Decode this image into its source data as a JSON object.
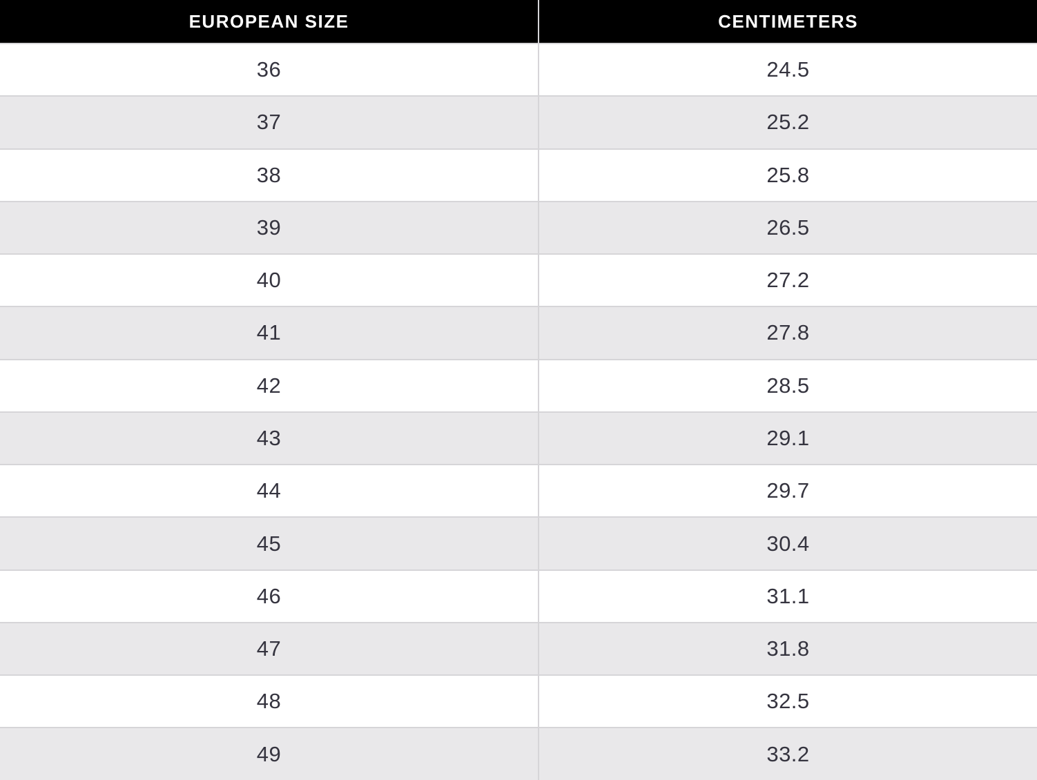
{
  "table": {
    "columns": [
      {
        "key": "european_size",
        "label": "EUROPEAN SIZE"
      },
      {
        "key": "centimeters",
        "label": "CENTIMETERS"
      }
    ],
    "rows": [
      {
        "european_size": "36",
        "centimeters": "24.5"
      },
      {
        "european_size": "37",
        "centimeters": "25.2"
      },
      {
        "european_size": "38",
        "centimeters": "25.8"
      },
      {
        "european_size": "39",
        "centimeters": "26.5"
      },
      {
        "european_size": "40",
        "centimeters": "27.2"
      },
      {
        "european_size": "41",
        "centimeters": "27.8"
      },
      {
        "european_size": "42",
        "centimeters": "28.5"
      },
      {
        "european_size": "43",
        "centimeters": "29.1"
      },
      {
        "european_size": "44",
        "centimeters": "29.7"
      },
      {
        "european_size": "45",
        "centimeters": "30.4"
      },
      {
        "european_size": "46",
        "centimeters": "31.1"
      },
      {
        "european_size": "47",
        "centimeters": "31.8"
      },
      {
        "european_size": "48",
        "centimeters": "32.5"
      },
      {
        "european_size": "49",
        "centimeters": "33.2"
      }
    ]
  },
  "colors": {
    "header_bg": "#000000",
    "header_text": "#ffffff",
    "row_bg": "#ffffff",
    "row_alt_bg": "#e9e8ea",
    "border": "#d6d5d8",
    "cell_text": "#35343f"
  }
}
